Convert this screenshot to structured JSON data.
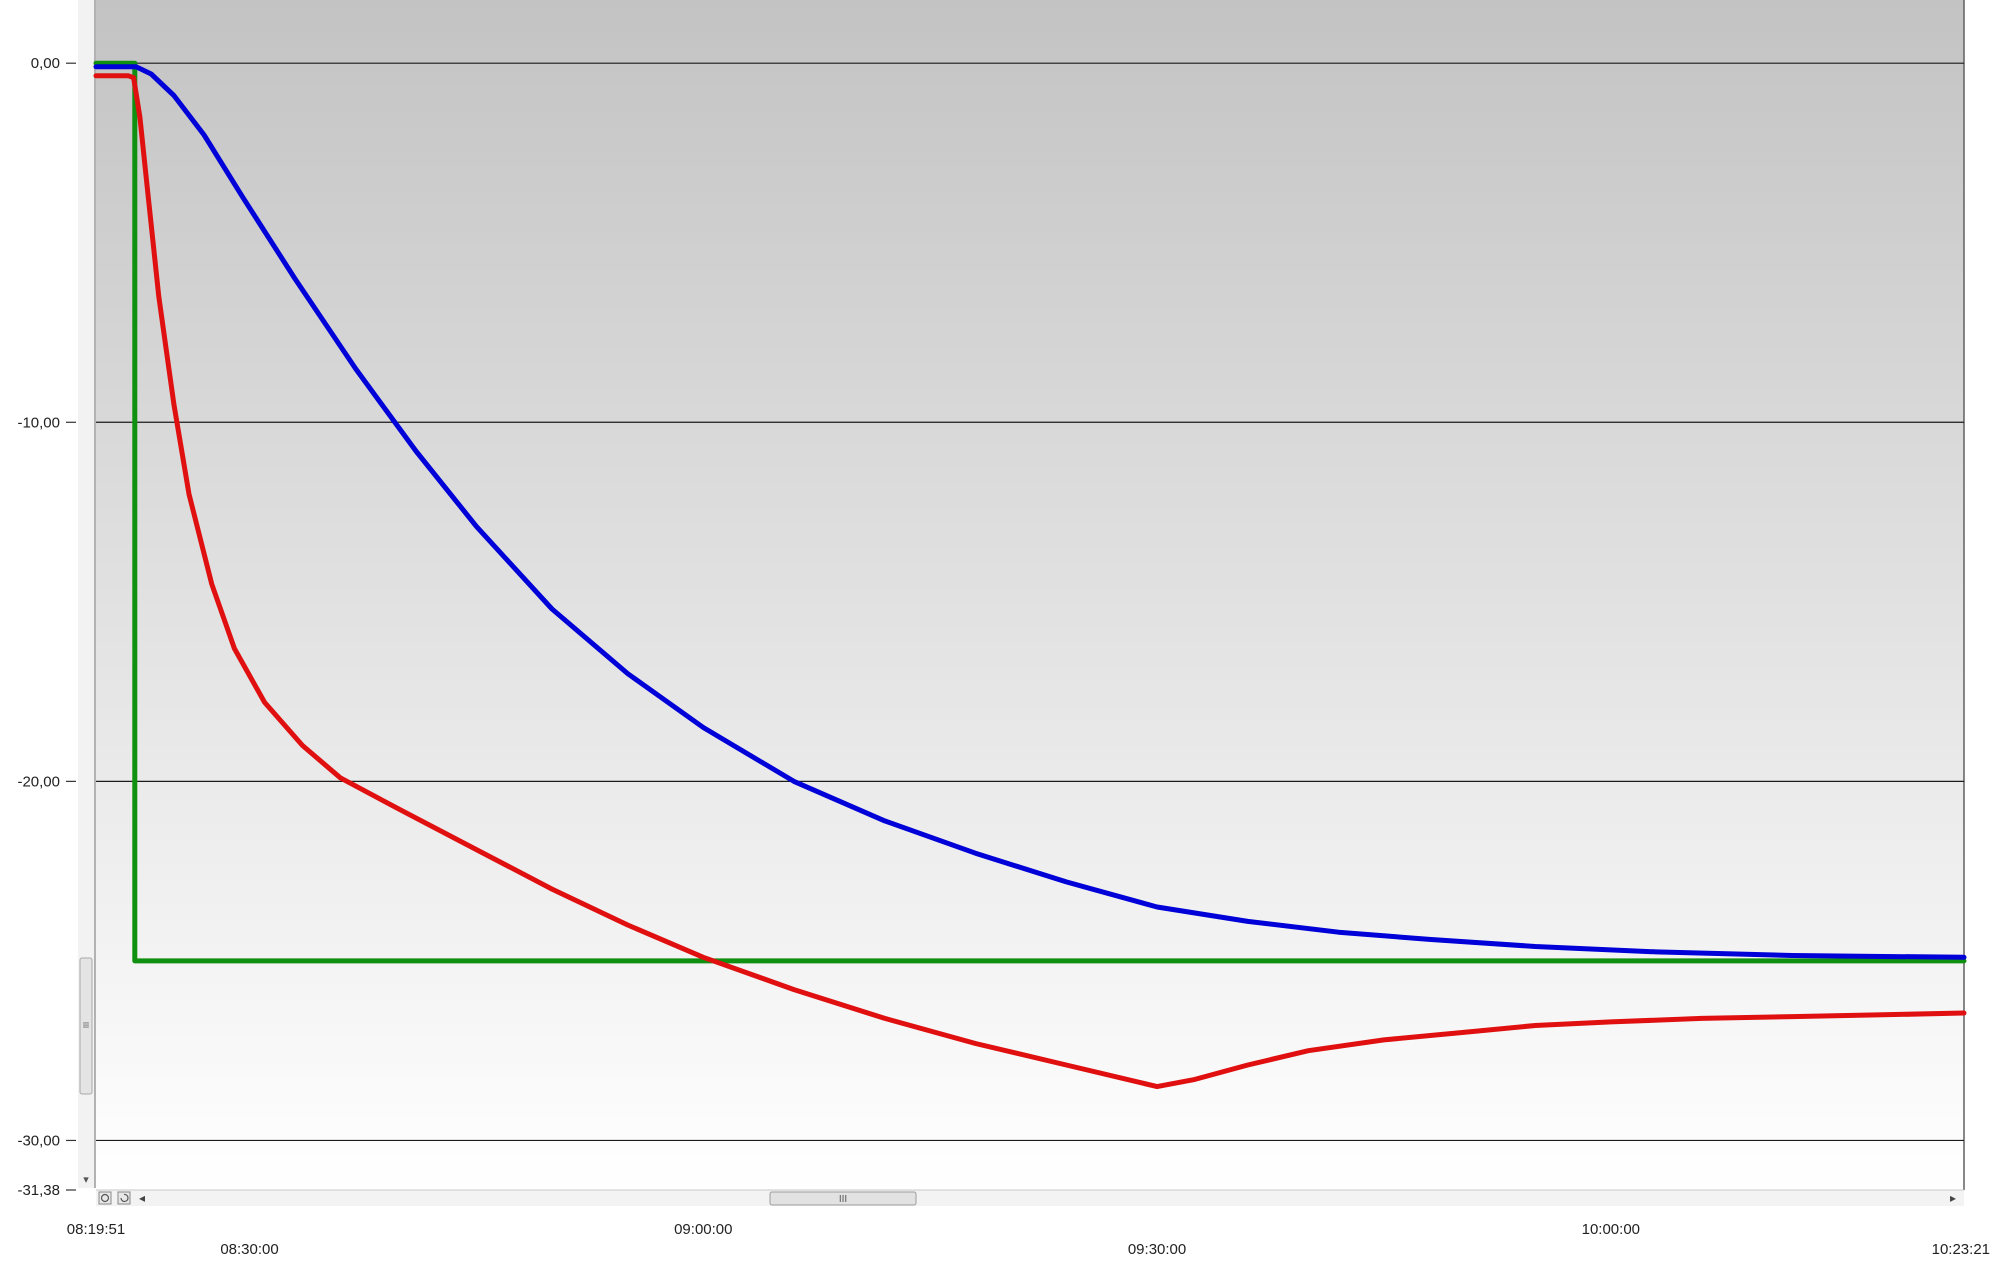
{
  "chart_data": {
    "type": "line",
    "title": "",
    "xlabel": "",
    "ylabel": "",
    "x_range": [
      "08:19:51",
      "10:23:21"
    ],
    "ylim": [
      -31.38,
      1.76
    ],
    "y_ticks": [
      {
        "label": "0,00",
        "value": 0
      },
      {
        "label": "-10,00",
        "value": -10
      },
      {
        "label": "-20,00",
        "value": -20
      },
      {
        "label": "-30,00",
        "value": -30
      },
      {
        "label": "-31,38",
        "value": -31.38
      }
    ],
    "x_ticks": [
      {
        "label": "08:19:51",
        "time": "08:19:51",
        "row": 1
      },
      {
        "label": "08:30:00",
        "time": "08:30:00",
        "row": 2
      },
      {
        "label": "09:00:00",
        "time": "09:00:00",
        "row": 1
      },
      {
        "label": "09:30:00",
        "time": "09:30:00",
        "row": 2
      },
      {
        "label": "10:00:00",
        "time": "10:00:00",
        "row": 1
      },
      {
        "label": "10:23:21",
        "time": "10:23:21",
        "row": 2
      }
    ],
    "grid": true,
    "series": [
      {
        "color": "#0000d8",
        "points": [
          [
            "08:19:51",
            -0.1
          ],
          [
            "08:21:30",
            -0.1
          ],
          [
            "08:22:30",
            -0.1
          ],
          [
            "08:23:30",
            -0.3
          ],
          [
            "08:25:00",
            -0.9
          ],
          [
            "08:27:00",
            -2.0
          ],
          [
            "08:29:30",
            -3.7
          ],
          [
            "08:33:00",
            -6.0
          ],
          [
            "08:37:00",
            -8.5
          ],
          [
            "08:41:00",
            -10.8
          ],
          [
            "08:45:00",
            -12.9
          ],
          [
            "08:50:00",
            -15.2
          ],
          [
            "08:55:00",
            -17.0
          ],
          [
            "09:00:00",
            -18.5
          ],
          [
            "09:06:00",
            -20.0
          ],
          [
            "09:12:00",
            -21.1
          ],
          [
            "09:18:00",
            -22.0
          ],
          [
            "09:24:00",
            -22.8
          ],
          [
            "09:30:00",
            -23.5
          ],
          [
            "09:36:00",
            -23.9
          ],
          [
            "09:42:00",
            -24.2
          ],
          [
            "09:48:00",
            -24.4
          ],
          [
            "09:55:00",
            -24.6
          ],
          [
            "10:03:00",
            -24.75
          ],
          [
            "10:12:00",
            -24.85
          ],
          [
            "10:23:21",
            -24.9
          ]
        ]
      },
      {
        "color": "#e01010",
        "points": [
          [
            "08:19:51",
            -0.35
          ],
          [
            "08:22:00",
            -0.35
          ],
          [
            "08:22:20",
            -0.4
          ],
          [
            "08:22:45",
            -1.5
          ],
          [
            "08:23:15",
            -3.5
          ],
          [
            "08:24:00",
            -6.5
          ],
          [
            "08:25:00",
            -9.5
          ],
          [
            "08:26:00",
            -12.0
          ],
          [
            "08:27:30",
            -14.5
          ],
          [
            "08:29:00",
            -16.3
          ],
          [
            "08:31:00",
            -17.8
          ],
          [
            "08:33:30",
            -19.0
          ],
          [
            "08:36:00",
            -19.9
          ],
          [
            "08:40:00",
            -20.8
          ],
          [
            "08:45:00",
            -21.9
          ],
          [
            "08:50:00",
            -23.0
          ],
          [
            "08:55:00",
            -24.0
          ],
          [
            "09:00:00",
            -24.9
          ],
          [
            "09:06:00",
            -25.8
          ],
          [
            "09:12:00",
            -26.6
          ],
          [
            "09:18:00",
            -27.3
          ],
          [
            "09:24:00",
            -27.9
          ],
          [
            "09:30:00",
            -28.5
          ],
          [
            "09:32:30",
            -28.3
          ],
          [
            "09:36:00",
            -27.9
          ],
          [
            "09:40:00",
            -27.5
          ],
          [
            "09:45:00",
            -27.2
          ],
          [
            "09:50:00",
            -27.0
          ],
          [
            "09:55:00",
            -26.8
          ],
          [
            "10:00:00",
            -26.7
          ],
          [
            "10:06:00",
            -26.6
          ],
          [
            "10:12:00",
            -26.55
          ],
          [
            "10:18:00",
            -26.5
          ],
          [
            "10:23:21",
            -26.45
          ]
        ]
      },
      {
        "color": "#109010",
        "points": [
          [
            "08:19:51",
            0
          ],
          [
            "08:22:00",
            0
          ],
          [
            "08:22:25",
            0
          ],
          [
            "08:22:25",
            -25.0
          ],
          [
            "10:23:21",
            -25.0
          ]
        ]
      }
    ]
  },
  "scrollbar": {
    "thumb_glyph": "III",
    "left_arrow": "◂",
    "right_arrow": "▸",
    "vthumb_glyph": "≡",
    "vdown_arrow": "▾"
  }
}
